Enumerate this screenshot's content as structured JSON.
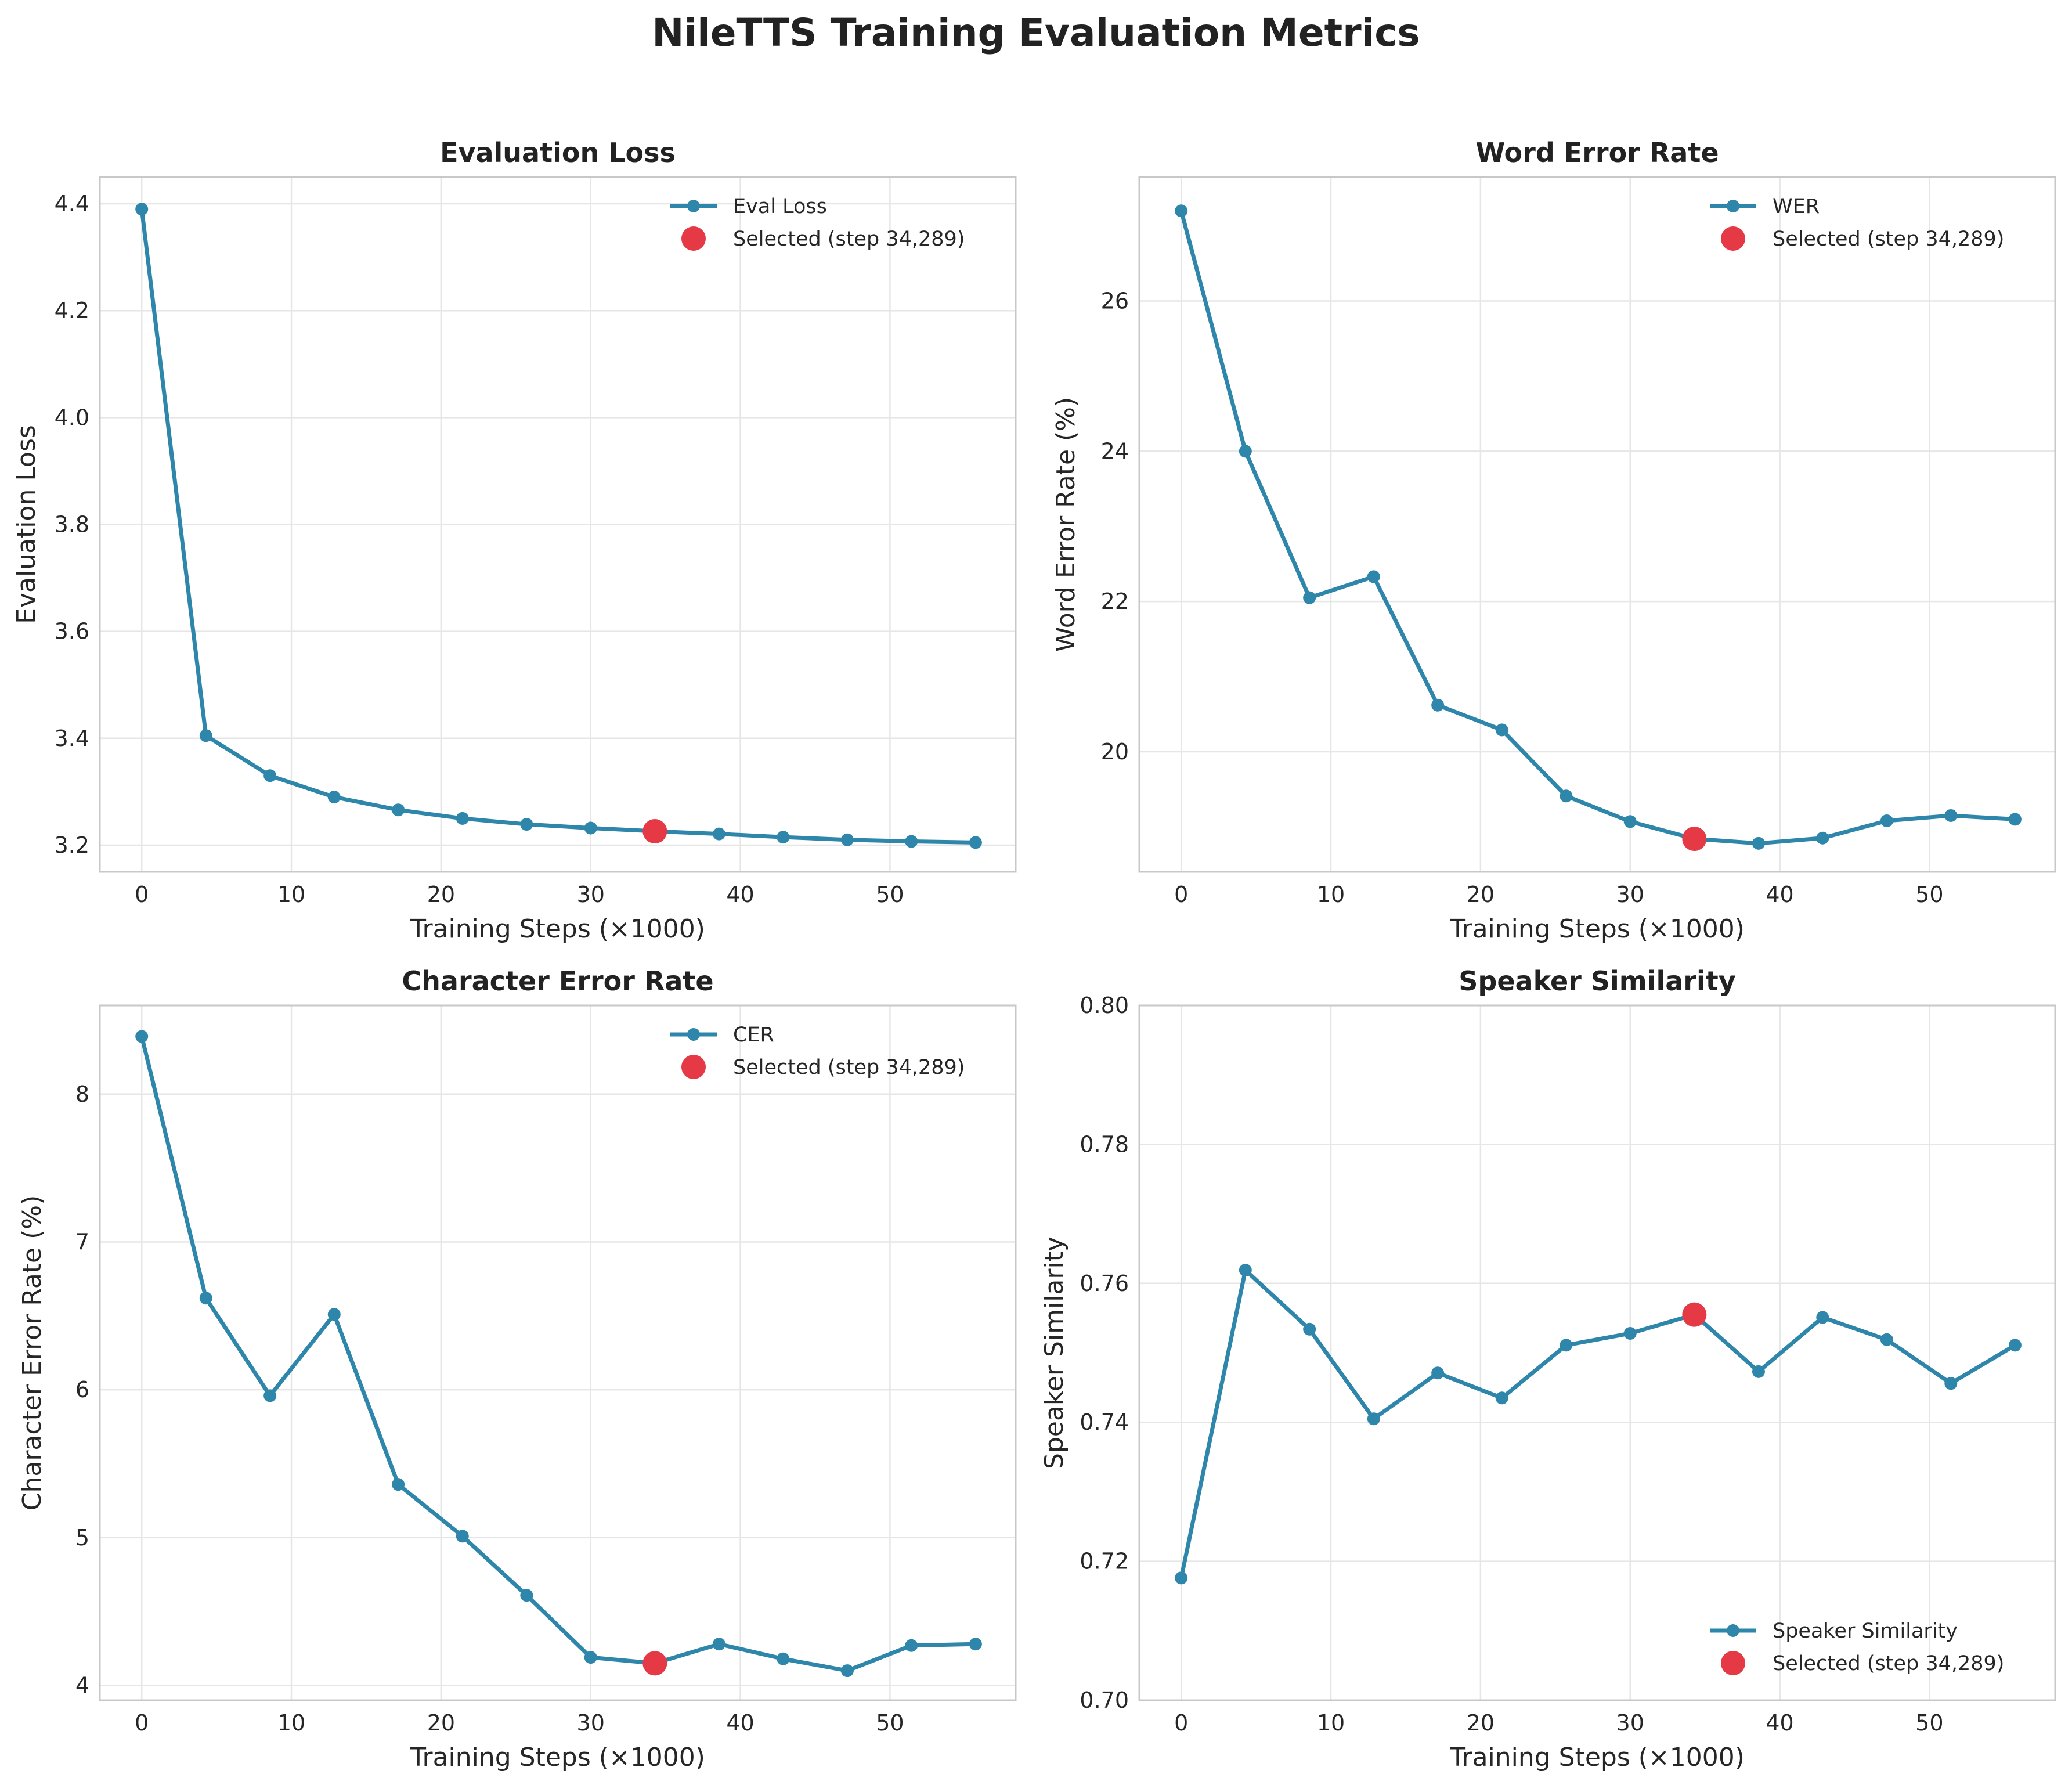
{
  "title": "NileTTS Training Evaluation Metrics",
  "colors": {
    "series": "#2E86AB",
    "selected": "#E63946",
    "grid": "#e6e6e6",
    "frame": "#c8c8c8"
  },
  "chart_data": [
    {
      "type": "line",
      "title": "Evaluation Loss",
      "xlabel": "Training Steps (×1000)",
      "ylabel": "Evaluation Loss",
      "xlim": [
        -2.8,
        58.4
      ],
      "ylim": [
        3.15,
        4.45
      ],
      "xticks": [
        0,
        10,
        20,
        30,
        40,
        50
      ],
      "yticks": [
        3.2,
        3.4,
        3.6,
        3.8,
        4.0,
        4.2,
        4.4
      ],
      "ytick_labels": [
        "3.2",
        "3.4",
        "3.6",
        "3.8",
        "4.0",
        "4.2",
        "4.4"
      ],
      "x": [
        0,
        4.29,
        8.57,
        12.86,
        17.14,
        21.43,
        25.72,
        30.0,
        34.29,
        38.58,
        42.86,
        47.15,
        51.43,
        55.72
      ],
      "series": [
        {
          "name": "Eval Loss",
          "values": [
            4.39,
            3.405,
            3.33,
            3.29,
            3.266,
            3.25,
            3.239,
            3.232,
            3.226,
            3.221,
            3.215,
            3.21,
            3.207,
            3.205
          ]
        }
      ],
      "selected": {
        "label": "Selected (step 34,289)",
        "x": 34.29,
        "y": 3.226
      },
      "legend_position": "upper right"
    },
    {
      "type": "line",
      "title": "Word Error Rate",
      "xlabel": "Training Steps (×1000)",
      "ylabel": "Word Error Rate (%)",
      "xlim": [
        -2.8,
        58.4
      ],
      "ylim": [
        18.4,
        27.65
      ],
      "xticks": [
        0,
        10,
        20,
        30,
        40,
        50
      ],
      "yticks": [
        20,
        22,
        24,
        26
      ],
      "ytick_labels": [
        "20",
        "22",
        "24",
        "26"
      ],
      "x": [
        0,
        4.29,
        8.57,
        12.86,
        17.14,
        21.43,
        25.72,
        30.0,
        34.29,
        38.58,
        42.86,
        47.15,
        51.43,
        55.72
      ],
      "series": [
        {
          "name": "WER",
          "values": [
            27.2,
            24.0,
            22.05,
            22.33,
            20.62,
            20.29,
            19.41,
            19.07,
            18.84,
            18.78,
            18.85,
            19.08,
            19.15,
            19.1
          ]
        }
      ],
      "selected": {
        "label": "Selected (step 34,289)",
        "x": 34.29,
        "y": 18.84
      },
      "legend_position": "upper right"
    },
    {
      "type": "line",
      "title": "Character Error Rate",
      "xlabel": "Training Steps (×1000)",
      "ylabel": "Character Error Rate (%)",
      "xlim": [
        -2.8,
        58.4
      ],
      "ylim": [
        3.9,
        8.6
      ],
      "xticks": [
        0,
        10,
        20,
        30,
        40,
        50
      ],
      "yticks": [
        4,
        5,
        6,
        7,
        8
      ],
      "ytick_labels": [
        "4",
        "5",
        "6",
        "7",
        "8"
      ],
      "x": [
        0,
        4.29,
        8.57,
        12.86,
        17.14,
        21.43,
        25.72,
        30.0,
        34.29,
        38.58,
        42.86,
        47.15,
        51.43,
        55.72
      ],
      "series": [
        {
          "name": "CER",
          "values": [
            8.39,
            6.62,
            5.96,
            6.51,
            5.36,
            5.01,
            4.61,
            4.19,
            4.15,
            4.28,
            4.18,
            4.1,
            4.27,
            4.28
          ]
        }
      ],
      "selected": {
        "label": "Selected (step 34,289)",
        "x": 34.29,
        "y": 4.15
      },
      "legend_position": "upper right"
    },
    {
      "type": "line",
      "title": "Speaker Similarity",
      "xlabel": "Training Steps (×1000)",
      "ylabel": "Speaker Similarity",
      "xlim": [
        -2.8,
        58.4
      ],
      "ylim": [
        0.7,
        0.8
      ],
      "xticks": [
        0,
        10,
        20,
        30,
        40,
        50
      ],
      "yticks": [
        0.7,
        0.72,
        0.74,
        0.76,
        0.78,
        0.8
      ],
      "ytick_labels": [
        "0.70",
        "0.72",
        "0.74",
        "0.76",
        "0.78",
        "0.80"
      ],
      "x": [
        0,
        4.29,
        8.57,
        12.86,
        17.14,
        21.43,
        25.72,
        30.0,
        34.29,
        38.58,
        42.86,
        47.15,
        51.43,
        55.72
      ],
      "series": [
        {
          "name": "Speaker Similarity",
          "values": [
            0.7176,
            0.7619,
            0.7534,
            0.7405,
            0.7471,
            0.7435,
            0.7511,
            0.7528,
            0.7555,
            0.7473,
            0.7551,
            0.7519,
            0.7456,
            0.7511
          ]
        }
      ],
      "selected": {
        "label": "Selected (step 34,289)",
        "x": 34.29,
        "y": 0.7555
      },
      "legend_position": "lower right"
    }
  ]
}
